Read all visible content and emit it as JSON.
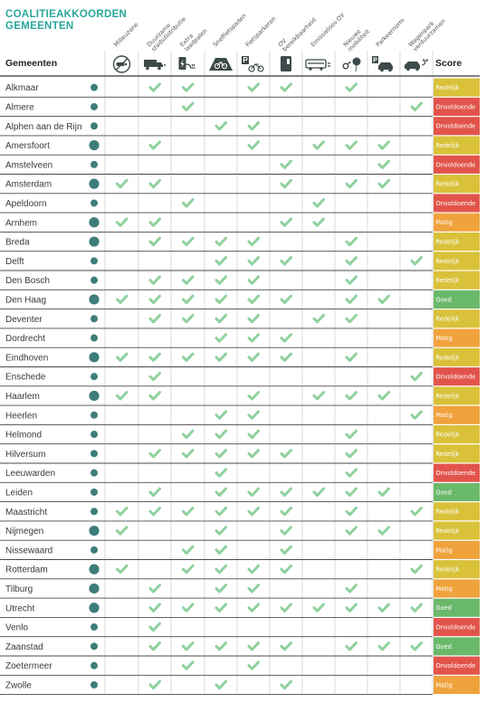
{
  "title_lines": [
    "COALITIEAKKOORDEN",
    "GEMEENTEN"
  ],
  "column_header": "Gemeenten",
  "score_header": "Score",
  "categories": [
    {
      "label": "Milieuzone",
      "icon": "car-exhaust-icon"
    },
    {
      "label": "Duurzame stadsdistributie",
      "icon": "delivery-truck-icon"
    },
    {
      "label": "Extra laadpalen",
      "icon": "charging-station-icon"
    },
    {
      "label": "Snelfietspaden",
      "icon": "bike-lane-icon"
    },
    {
      "label": "Fietsparkeren",
      "icon": "bike-parking-icon"
    },
    {
      "label": "OV bereikbaarheid",
      "icon": "transit-door-icon"
    },
    {
      "label": "Emissieloos OV",
      "icon": "electric-bus-icon"
    },
    {
      "label": "Nieuwe mobiliteit",
      "icon": "key-balloon-icon"
    },
    {
      "label": "Parkeernorm",
      "icon": "parked-car-icon"
    },
    {
      "label": "Wagenpark verduurzamen",
      "icon": "electric-car-icon"
    }
  ],
  "score_colors": {
    "Redelijk": "#d9c13a",
    "Onvoldoende": "#e2544b",
    "Matig": "#f0a23c",
    "Goed": "#6ab86a"
  },
  "check_color": "#8fd19e",
  "dot_color": "#3e7d7a",
  "chart_data": {
    "type": "table",
    "columns": [
      "Milieuzone",
      "Duurzame stadsdistributie",
      "Extra laadpalen",
      "Snelfietspaden",
      "Fietsparkeren",
      "OV bereikbaarheid",
      "Emissieloos OV",
      "Nieuwe mobiliteit",
      "Parkeernorm",
      "Wagenpark verduurzamen"
    ],
    "rows": [
      {
        "name": "Alkmaar",
        "dot": "small",
        "checks": [
          0,
          1,
          1,
          0,
          1,
          1,
          0,
          1,
          0,
          0
        ],
        "score": "Redelijk"
      },
      {
        "name": "Almere",
        "dot": "small",
        "checks": [
          0,
          0,
          1,
          0,
          0,
          0,
          0,
          0,
          0,
          1
        ],
        "score": "Onvoldoende"
      },
      {
        "name": "Alphen aan de Rijn",
        "dot": "small",
        "checks": [
          0,
          0,
          0,
          1,
          1,
          0,
          0,
          0,
          0,
          0
        ],
        "score": "Onvoldoende"
      },
      {
        "name": "Amersfoort",
        "dot": "large",
        "checks": [
          0,
          1,
          0,
          0,
          1,
          0,
          1,
          1,
          1,
          0
        ],
        "score": "Redelijk"
      },
      {
        "name": "Amstelveen",
        "dot": "small",
        "checks": [
          0,
          0,
          0,
          0,
          0,
          1,
          0,
          0,
          1,
          0
        ],
        "score": "Onvoldoende"
      },
      {
        "name": "Amsterdam",
        "dot": "large",
        "checks": [
          1,
          1,
          0,
          0,
          0,
          1,
          0,
          1,
          1,
          0
        ],
        "score": "Redelijk"
      },
      {
        "name": "Apeldoorn",
        "dot": "small",
        "checks": [
          0,
          0,
          1,
          0,
          0,
          0,
          1,
          0,
          0,
          0
        ],
        "score": "Onvoldoende"
      },
      {
        "name": "Arnhem",
        "dot": "large",
        "checks": [
          1,
          1,
          0,
          0,
          0,
          1,
          1,
          0,
          0,
          0
        ],
        "score": "Matig"
      },
      {
        "name": "Breda",
        "dot": "large",
        "checks": [
          0,
          1,
          1,
          1,
          1,
          0,
          0,
          1,
          0,
          0
        ],
        "score": "Redelijk"
      },
      {
        "name": "Delft",
        "dot": "small",
        "checks": [
          0,
          0,
          0,
          1,
          1,
          1,
          0,
          1,
          0,
          1
        ],
        "score": "Redelijk"
      },
      {
        "name": "Den Bosch",
        "dot": "small",
        "checks": [
          0,
          1,
          1,
          1,
          1,
          0,
          0,
          1,
          0,
          0
        ],
        "score": "Redelijk"
      },
      {
        "name": "Den Haag",
        "dot": "large",
        "checks": [
          1,
          1,
          1,
          1,
          1,
          1,
          0,
          1,
          1,
          0
        ],
        "score": "Goed"
      },
      {
        "name": "Deventer",
        "dot": "small",
        "checks": [
          0,
          1,
          1,
          1,
          1,
          0,
          1,
          1,
          0,
          0
        ],
        "score": "Redelijk"
      },
      {
        "name": "Dordrecht",
        "dot": "small",
        "checks": [
          0,
          0,
          0,
          1,
          1,
          1,
          0,
          0,
          0,
          0
        ],
        "score": "Matig"
      },
      {
        "name": "Eindhoven",
        "dot": "large",
        "checks": [
          1,
          1,
          1,
          1,
          1,
          1,
          0,
          1,
          0,
          0
        ],
        "score": "Redelijk"
      },
      {
        "name": "Enschede",
        "dot": "small",
        "checks": [
          0,
          1,
          0,
          0,
          0,
          0,
          0,
          0,
          0,
          1
        ],
        "score": "Onvoldoende"
      },
      {
        "name": "Haarlem",
        "dot": "large",
        "checks": [
          1,
          1,
          0,
          0,
          1,
          0,
          1,
          1,
          1,
          0
        ],
        "score": "Redelijk"
      },
      {
        "name": "Heerlen",
        "dot": "small",
        "checks": [
          0,
          0,
          0,
          1,
          1,
          0,
          0,
          0,
          0,
          1
        ],
        "score": "Matig"
      },
      {
        "name": "Helmond",
        "dot": "small",
        "checks": [
          0,
          0,
          1,
          1,
          1,
          0,
          0,
          1,
          0,
          0
        ],
        "score": "Redelijk"
      },
      {
        "name": "Hilversum",
        "dot": "small",
        "checks": [
          0,
          1,
          1,
          1,
          1,
          1,
          0,
          1,
          0,
          0
        ],
        "score": "Redelijk"
      },
      {
        "name": "Leeuwarden",
        "dot": "small",
        "checks": [
          0,
          0,
          0,
          1,
          0,
          0,
          0,
          1,
          0,
          0
        ],
        "score": "Onvoldoende"
      },
      {
        "name": "Leiden",
        "dot": "small",
        "checks": [
          0,
          1,
          0,
          1,
          1,
          1,
          1,
          1,
          1,
          0
        ],
        "score": "Goed"
      },
      {
        "name": "Maastricht",
        "dot": "small",
        "checks": [
          1,
          1,
          1,
          1,
          1,
          1,
          0,
          1,
          0,
          1
        ],
        "score": "Redelijk"
      },
      {
        "name": "Nijmegen",
        "dot": "large",
        "checks": [
          1,
          0,
          0,
          1,
          0,
          1,
          0,
          1,
          1,
          0
        ],
        "score": "Redelijk"
      },
      {
        "name": "Nissewaard",
        "dot": "small",
        "checks": [
          0,
          0,
          1,
          1,
          0,
          1,
          0,
          0,
          0,
          0
        ],
        "score": "Matig"
      },
      {
        "name": "Rotterdam",
        "dot": "large",
        "checks": [
          1,
          0,
          1,
          1,
          1,
          1,
          0,
          0,
          0,
          1
        ],
        "score": "Redelijk"
      },
      {
        "name": "Tilburg",
        "dot": "large",
        "checks": [
          0,
          1,
          0,
          1,
          1,
          0,
          0,
          1,
          0,
          0
        ],
        "score": "Matig"
      },
      {
        "name": "Utrecht",
        "dot": "large",
        "checks": [
          0,
          1,
          1,
          1,
          1,
          1,
          1,
          1,
          1,
          1
        ],
        "score": "Goed"
      },
      {
        "name": "Venlo",
        "dot": "small",
        "checks": [
          0,
          1,
          0,
          0,
          0,
          0,
          0,
          0,
          0,
          0
        ],
        "score": "Onvoldoende"
      },
      {
        "name": "Zaanstad",
        "dot": "small",
        "checks": [
          0,
          1,
          1,
          1,
          1,
          1,
          0,
          1,
          1,
          1
        ],
        "score": "Goed"
      },
      {
        "name": "Zoetermeer",
        "dot": "small",
        "checks": [
          0,
          0,
          1,
          0,
          1,
          0,
          0,
          0,
          0,
          0
        ],
        "score": "Onvoldoende"
      },
      {
        "name": "Zwolle",
        "dot": "small",
        "checks": [
          0,
          1,
          0,
          1,
          0,
          1,
          0,
          0,
          0,
          0
        ],
        "score": "Matig"
      }
    ]
  }
}
